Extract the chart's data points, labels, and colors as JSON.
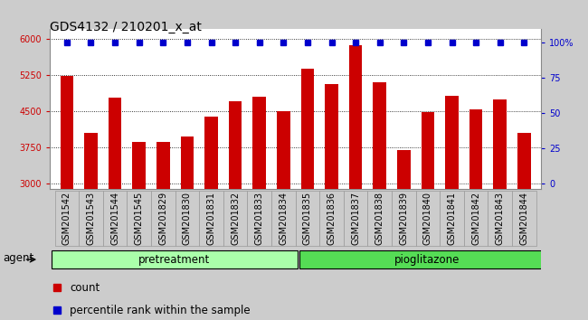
{
  "title": "GDS4132 / 210201_x_at",
  "categories": [
    "GSM201542",
    "GSM201543",
    "GSM201544",
    "GSM201545",
    "GSM201829",
    "GSM201830",
    "GSM201831",
    "GSM201832",
    "GSM201833",
    "GSM201834",
    "GSM201835",
    "GSM201836",
    "GSM201837",
    "GSM201838",
    "GSM201839",
    "GSM201840",
    "GSM201841",
    "GSM201842",
    "GSM201843",
    "GSM201844"
  ],
  "bar_values": [
    5220,
    4050,
    4780,
    3870,
    3870,
    3980,
    4380,
    4700,
    4790,
    4500,
    5380,
    5060,
    5870,
    5090,
    3700,
    4480,
    4820,
    4530,
    4750,
    4050
  ],
  "percentile_values": [
    100,
    100,
    100,
    100,
    100,
    100,
    100,
    100,
    100,
    100,
    100,
    100,
    100,
    100,
    100,
    100,
    100,
    100,
    100,
    100
  ],
  "bar_color": "#cc0000",
  "percentile_color": "#0000cc",
  "n_pretreatment": 10,
  "n_pioglitazone": 10,
  "pretreatment_label": "pretreatment",
  "pioglitazone_label": "pioglitazone",
  "agent_label": "agent",
  "pretreatment_color": "#aaffaa",
  "pioglitazone_color": "#55dd55",
  "ylim_left": [
    2900,
    6200
  ],
  "ylim_right": [
    -3.5,
    110
  ],
  "yticks_left": [
    3000,
    3750,
    4500,
    5250,
    6000
  ],
  "yticks_right": [
    0,
    25,
    50,
    75,
    100
  ],
  "ytick_labels_right": [
    "0",
    "25",
    "50",
    "75",
    "100%"
  ],
  "bg_color": "#cccccc",
  "plot_bg_color": "#ffffff",
  "tick_fontsize": 7.0,
  "label_fontsize": 8.5,
  "title_fontsize": 10,
  "legend_count_label": "count",
  "legend_percentile_label": "percentile rank within the sample"
}
